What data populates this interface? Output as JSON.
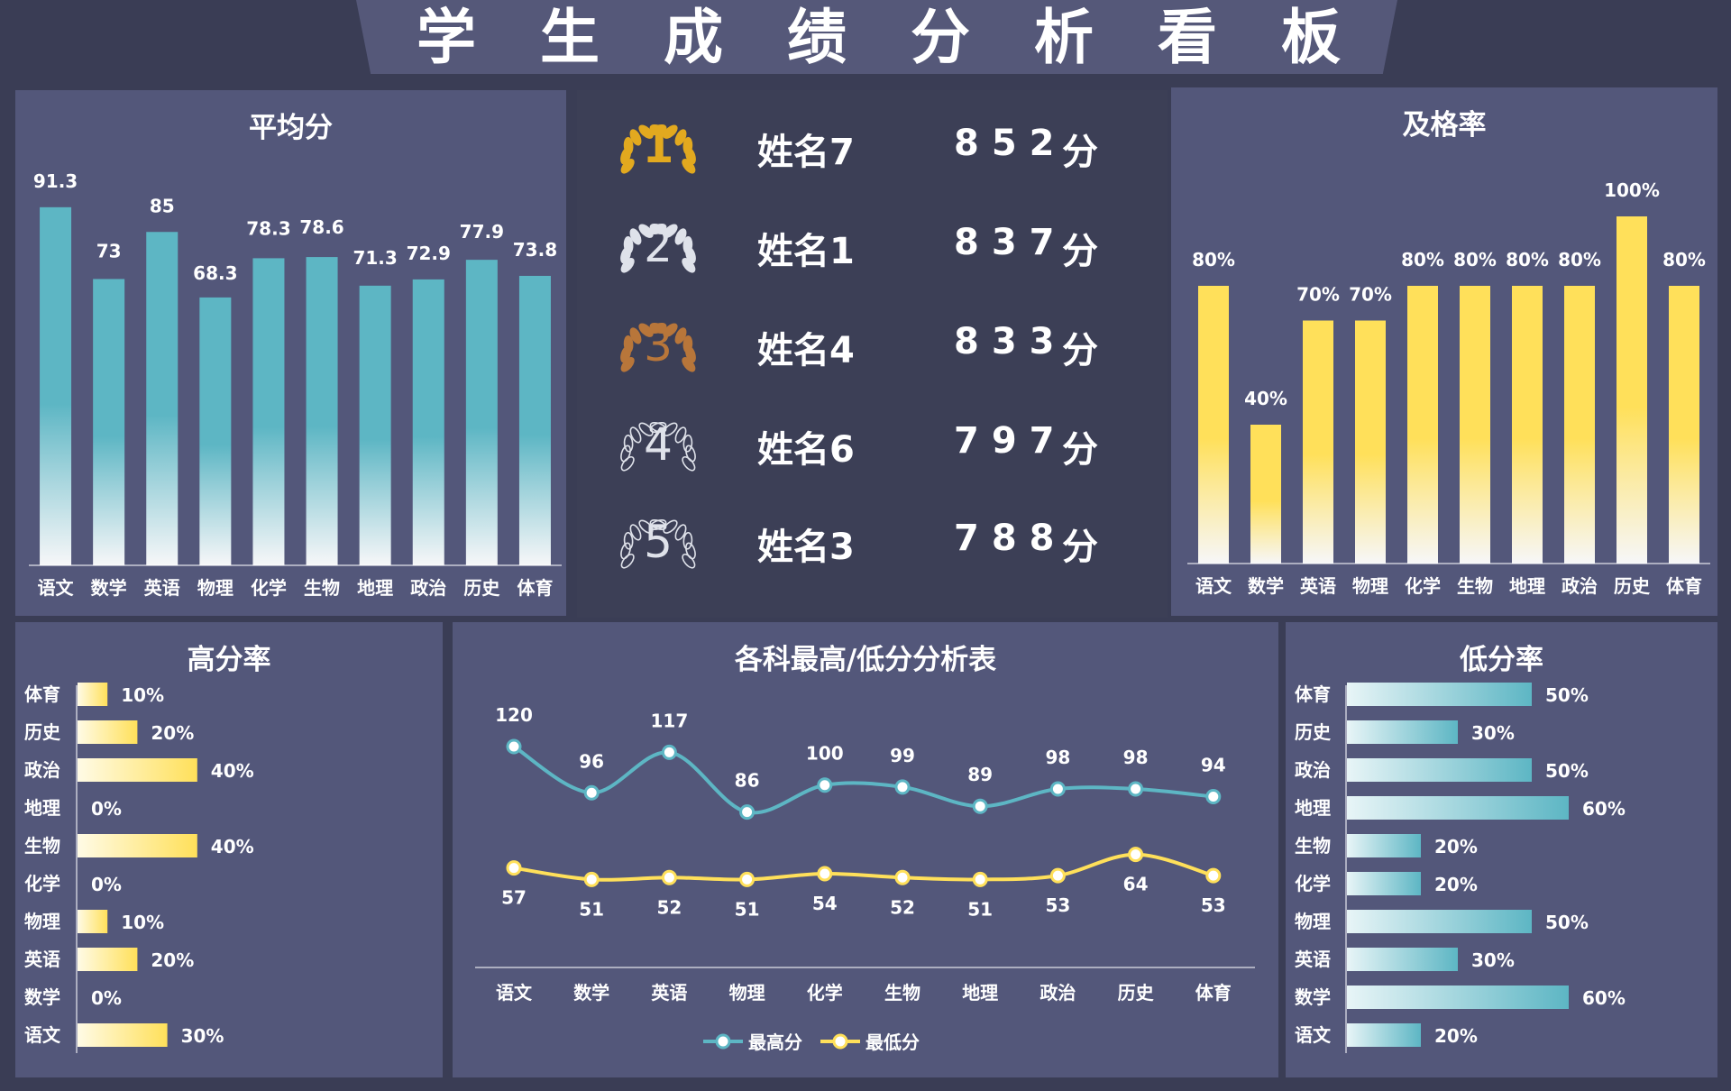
{
  "dashboard_title": "学生成绩分析看板",
  "colors": {
    "teal": "#5db6c4",
    "yellow": "#ffe05a",
    "gold": "#e2a91f",
    "silver": "#dfe2ea",
    "bronze": "#b8763a"
  },
  "ranking": [
    {
      "rank": "1",
      "name": "姓名7",
      "score": "852",
      "unit": "分",
      "icon": "gold-laurel-icon"
    },
    {
      "rank": "2",
      "name": "姓名1",
      "score": "837",
      "unit": "分",
      "icon": "silver-laurel-icon"
    },
    {
      "rank": "3",
      "name": "姓名4",
      "score": "833",
      "unit": "分",
      "icon": "bronze-laurel-icon"
    },
    {
      "rank": "4",
      "name": "姓名6",
      "score": "797",
      "unit": "分",
      "icon": "laurel-icon"
    },
    {
      "rank": "5",
      "name": "姓名3",
      "score": "788",
      "unit": "分",
      "icon": "laurel-icon"
    }
  ],
  "chart_data": [
    {
      "id": "average",
      "type": "bar",
      "title": "平均分",
      "categories": [
        "语文",
        "数学",
        "英语",
        "物理",
        "化学",
        "生物",
        "地理",
        "政治",
        "历史",
        "体育"
      ],
      "values": [
        91.3,
        73,
        85,
        68.3,
        78.3,
        78.6,
        71.3,
        72.9,
        77.9,
        73.8
      ],
      "labels": [
        "91.3",
        "73",
        "85",
        "68.3",
        "78.3",
        "78.6",
        "71.3",
        "72.9",
        "77.9",
        "73.8"
      ]
    },
    {
      "id": "pass_rate",
      "type": "bar",
      "title": "及格率",
      "categories": [
        "语文",
        "数学",
        "英语",
        "物理",
        "化学",
        "生物",
        "地理",
        "政治",
        "历史",
        "体育"
      ],
      "values": [
        80,
        40,
        70,
        70,
        80,
        80,
        80,
        80,
        100,
        80
      ],
      "labels": [
        "80%",
        "40%",
        "70%",
        "70%",
        "80%",
        "80%",
        "80%",
        "80%",
        "100%",
        "80%"
      ]
    },
    {
      "id": "high_rate",
      "type": "bar",
      "orientation": "horizontal",
      "title": "高分率",
      "categories": [
        "体育",
        "历史",
        "政治",
        "地理",
        "生物",
        "化学",
        "物理",
        "英语",
        "数学",
        "语文"
      ],
      "values": [
        10,
        20,
        40,
        0,
        40,
        0,
        10,
        20,
        0,
        30
      ],
      "labels": [
        "10%",
        "20%",
        "40%",
        "0%",
        "40%",
        "0%",
        "10%",
        "20%",
        "0%",
        "30%"
      ]
    },
    {
      "id": "high_low",
      "type": "line",
      "title": "各科最高/低分分析表",
      "categories": [
        "语文",
        "数学",
        "英语",
        "物理",
        "化学",
        "生物",
        "地理",
        "政治",
        "历史",
        "体育"
      ],
      "series": [
        {
          "name": "最高分",
          "values": [
            120,
            96,
            117,
            86,
            100,
            99,
            89,
            98,
            98,
            94
          ],
          "labels": [
            "120",
            "96",
            "117",
            "86",
            "100",
            "99",
            "89",
            "98",
            "98",
            "94"
          ]
        },
        {
          "name": "最低分",
          "values": [
            57,
            51,
            52,
            51,
            54,
            52,
            51,
            53,
            64,
            53
          ],
          "labels": [
            "57",
            "51",
            "52",
            "51",
            "54",
            "52",
            "51",
            "53",
            "64",
            "53"
          ]
        }
      ]
    },
    {
      "id": "low_rate",
      "type": "bar",
      "orientation": "horizontal",
      "title": "低分率",
      "categories": [
        "体育",
        "历史",
        "政治",
        "地理",
        "生物",
        "化学",
        "物理",
        "英语",
        "数学",
        "语文"
      ],
      "values": [
        50,
        30,
        50,
        60,
        20,
        20,
        50,
        30,
        60,
        20
      ],
      "labels": [
        "50%",
        "30%",
        "50%",
        "60%",
        "20%",
        "20%",
        "50%",
        "30%",
        "60%",
        "20%"
      ]
    }
  ]
}
